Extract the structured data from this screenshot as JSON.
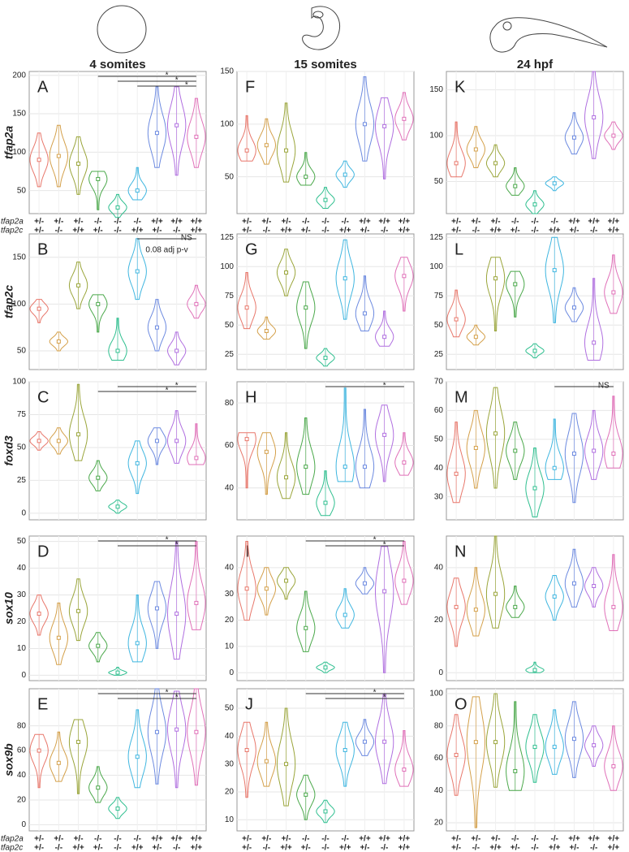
{
  "stages": [
    "4 somites",
    "15 somites",
    "24 hpf"
  ],
  "genotype_rows": [
    {
      "name": "tfap2a",
      "values": [
        "+/-",
        "+/-",
        "+/-",
        "-/-",
        "-/-",
        "-/-",
        "+/+",
        "+/+",
        "+/+"
      ]
    },
    {
      "name": "tfap2c",
      "values": [
        "+/-",
        "-/-",
        "+/+",
        "+/-",
        "-/-",
        "+/+",
        "+/-",
        "-/-",
        "+/+"
      ]
    }
  ],
  "colors": [
    "#e8776b",
    "#d4a04a",
    "#9aa53a",
    "#4aa84a",
    "#2fbf8f",
    "#3fb6e0",
    "#6c8ae0",
    "#b06fe0",
    "#e070b8"
  ],
  "chart_data": [
    {
      "type": "violin",
      "label": "A",
      "ylabel": "tfap2a",
      "ylim": [
        20,
        205
      ],
      "yticks": [
        50,
        100,
        150,
        200
      ],
      "min": [
        55,
        55,
        45,
        25,
        15,
        38,
        80,
        70,
        80
      ],
      "median": [
        90,
        95,
        85,
        65,
        28,
        50,
        125,
        135,
        120
      ],
      "max": [
        125,
        135,
        120,
        75,
        45,
        80,
        185,
        185,
        170
      ],
      "annotations": [
        "*",
        "*",
        "*"
      ]
    },
    {
      "type": "violin",
      "label": "B",
      "ylabel": "tfap2c",
      "ylim": [
        30,
        175
      ],
      "yticks": [
        50,
        100,
        150
      ],
      "min": [
        80,
        50,
        95,
        70,
        40,
        105,
        50,
        35,
        85
      ],
      "median": [
        95,
        60,
        120,
        100,
        50,
        135,
        75,
        50,
        100
      ],
      "max": [
        105,
        70,
        145,
        110,
        85,
        170,
        105,
        70,
        120
      ],
      "annotations": [
        "NS",
        "0.08 adj p-v"
      ]
    },
    {
      "type": "violin",
      "label": "C",
      "ylabel": "foxd3",
      "ylim": [
        -5,
        100
      ],
      "yticks": [
        0,
        25,
        50,
        75,
        100
      ],
      "min": [
        48,
        45,
        40,
        17,
        0,
        15,
        37,
        38,
        37
      ],
      "median": [
        55,
        55,
        60,
        27,
        5,
        38,
        55,
        55,
        42
      ],
      "max": [
        62,
        65,
        98,
        40,
        10,
        55,
        65,
        78,
        68
      ],
      "annotations": [
        "*",
        "*"
      ]
    },
    {
      "type": "violin",
      "label": "D",
      "ylabel": "sox10",
      "ylim": [
        -2,
        52
      ],
      "yticks": [
        0,
        10,
        20,
        30,
        40,
        50
      ],
      "min": [
        15,
        4,
        13,
        5,
        0,
        5,
        10,
        6,
        17
      ],
      "median": [
        23,
        14,
        24,
        11,
        1,
        12,
        25,
        23,
        27
      ],
      "max": [
        30,
        27,
        36,
        16,
        3,
        30,
        35,
        50,
        50
      ],
      "annotations": [
        "*",
        "*"
      ]
    },
    {
      "type": "violin",
      "label": "E",
      "ylabel": "sox9b",
      "ylim": [
        -5,
        110
      ],
      "yticks": [
        0,
        20,
        40,
        60,
        80
      ],
      "min": [
        30,
        35,
        25,
        18,
        5,
        30,
        33,
        30,
        32
      ],
      "median": [
        60,
        50,
        67,
        30,
        13,
        55,
        75,
        77,
        75
      ],
      "max": [
        73,
        75,
        85,
        47,
        22,
        93,
        110,
        108,
        110
      ],
      "annotations": [
        "*",
        "*"
      ]
    },
    {
      "type": "violin",
      "label": "F",
      "ylim": [
        15,
        150
      ],
      "yticks": [
        50,
        100,
        150
      ],
      "min": [
        65,
        62,
        45,
        42,
        20,
        40,
        65,
        48,
        85
      ],
      "median": [
        75,
        80,
        75,
        50,
        28,
        52,
        100,
        98,
        105
      ],
      "max": [
        108,
        105,
        120,
        73,
        40,
        65,
        145,
        125,
        130
      ]
    },
    {
      "type": "violin",
      "label": "G",
      "ylim": [
        12,
        128
      ],
      "yticks": [
        25,
        50,
        75,
        100,
        125
      ],
      "min": [
        47,
        38,
        75,
        30,
        15,
        55,
        45,
        32,
        62
      ],
      "median": [
        65,
        45,
        95,
        65,
        22,
        90,
        60,
        40,
        92
      ],
      "max": [
        95,
        57,
        115,
        87,
        30,
        123,
        92,
        62,
        108
      ]
    },
    {
      "type": "violin",
      "label": "H",
      "ylim": [
        25,
        90
      ],
      "yticks": [
        40,
        60,
        80
      ],
      "min": [
        40,
        37,
        35,
        37,
        27,
        43,
        40,
        43,
        46
      ],
      "median": [
        63,
        57,
        45,
        50,
        33,
        50,
        50,
        65,
        52
      ],
      "max": [
        66,
        66,
        66,
        73,
        48,
        87,
        77,
        79,
        66
      ],
      "annotations": [
        "*"
      ]
    },
    {
      "type": "violin",
      "label": "I",
      "ylim": [
        -3,
        52
      ],
      "yticks": [
        0,
        10,
        20,
        30,
        40
      ],
      "min": [
        20,
        22,
        28,
        8,
        0,
        17,
        30,
        0,
        26
      ],
      "median": [
        32,
        32,
        35,
        17,
        2,
        22,
        34,
        31,
        35
      ],
      "max": [
        50,
        40,
        40,
        31,
        4,
        32,
        40,
        48,
        50
      ],
      "annotations": [
        "*",
        "*"
      ]
    },
    {
      "type": "violin",
      "label": "J",
      "ylim": [
        6,
        57
      ],
      "yticks": [
        10,
        20,
        30,
        40,
        50
      ],
      "min": [
        18,
        22,
        15,
        10,
        9,
        22,
        33,
        23,
        22
      ],
      "median": [
        35,
        31,
        30,
        19,
        13,
        35,
        38,
        38,
        28
      ],
      "max": [
        45,
        45,
        50,
        26,
        17,
        45,
        46,
        55,
        42
      ],
      "annotations": [
        "*",
        "*"
      ]
    },
    {
      "type": "violin",
      "label": "K",
      "ylim": [
        15,
        170
      ],
      "yticks": [
        50,
        100,
        150
      ],
      "min": [
        55,
        65,
        55,
        35,
        15,
        40,
        80,
        75,
        85
      ],
      "median": [
        70,
        85,
        70,
        45,
        25,
        48,
        98,
        120,
        100
      ],
      "max": [
        115,
        110,
        90,
        65,
        40,
        55,
        125,
        170,
        115
      ]
    },
    {
      "type": "violin",
      "label": "L",
      "ylim": [
        12,
        128
      ],
      "yticks": [
        25,
        50,
        75,
        100,
        125
      ],
      "min": [
        40,
        33,
        45,
        57,
        22,
        52,
        53,
        20,
        60
      ],
      "median": [
        55,
        40,
        90,
        85,
        28,
        97,
        65,
        35,
        78
      ],
      "max": [
        80,
        50,
        108,
        96,
        34,
        125,
        82,
        90,
        110
      ]
    },
    {
      "type": "violin",
      "label": "M",
      "ylim": [
        22,
        70
      ],
      "yticks": [
        30,
        40,
        50,
        60,
        70
      ],
      "min": [
        28,
        33,
        33,
        36,
        23,
        36,
        28,
        36,
        40
      ],
      "median": [
        38,
        47,
        52,
        46,
        33,
        40,
        45,
        46,
        45
      ],
      "max": [
        56,
        60,
        68,
        56,
        47,
        57,
        59,
        60,
        65
      ],
      "annotations": [
        "NS"
      ]
    },
    {
      "type": "violin",
      "label": "N",
      "ylim": [
        -3,
        52
      ],
      "yticks": [
        0,
        20,
        40
      ],
      "min": [
        10,
        14,
        17,
        21,
        0,
        20,
        25,
        25,
        16
      ],
      "median": [
        25,
        24,
        30,
        25,
        1,
        29,
        34,
        33,
        25
      ],
      "max": [
        36,
        40,
        52,
        33,
        4,
        37,
        47,
        40,
        45
      ]
    },
    {
      "type": "violin",
      "label": "O",
      "ylim": [
        15,
        103
      ],
      "yticks": [
        20,
        40,
        60,
        80,
        100
      ],
      "min": [
        37,
        17,
        42,
        40,
        45,
        50,
        48,
        55,
        40
      ],
      "median": [
        62,
        70,
        70,
        52,
        67,
        67,
        72,
        68,
        55
      ],
      "max": [
        87,
        98,
        100,
        95,
        87,
        90,
        95,
        80,
        80
      ]
    }
  ]
}
